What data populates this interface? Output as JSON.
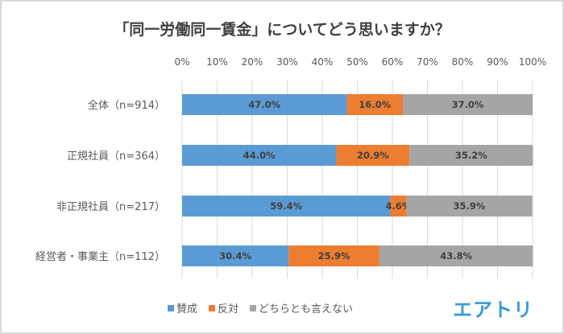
{
  "chart_data": {
    "type": "bar",
    "orientation": "horizontal-stacked-100",
    "title": "「同一労働同一賃金」についてどう思いますか？",
    "categories": [
      "全体（n=914）",
      "正規社員（n=364）",
      "非正規社員（n=217）",
      "経営者・事業主（n=112）"
    ],
    "series": [
      {
        "name": "賛成",
        "color": "#5b9bd5",
        "values": [
          47.0,
          44.0,
          59.4,
          30.4
        ],
        "labels": [
          "47.0%",
          "44.0%",
          "59.4%",
          "30.4%"
        ]
      },
      {
        "name": "反対",
        "color": "#ed7d31",
        "values": [
          16.0,
          20.9,
          4.6,
          25.9
        ],
        "labels": [
          "16.0%",
          "20.9%",
          "4.6%",
          "25.9%"
        ]
      },
      {
        "name": "どちらとも言えない",
        "color": "#a5a5a5",
        "values": [
          37.0,
          35.2,
          35.9,
          43.8
        ],
        "labels": [
          "37.0%",
          "35.2%",
          "35.9%",
          "43.8%"
        ]
      }
    ],
    "xlim": [
      0,
      100
    ],
    "xticks": [
      "0%",
      "10%",
      "20%",
      "30%",
      "40%",
      "50%",
      "60%",
      "70%",
      "80%",
      "90%",
      "100%"
    ],
    "grid": true,
    "legend_position": "bottom"
  },
  "logo": "エアトリ"
}
